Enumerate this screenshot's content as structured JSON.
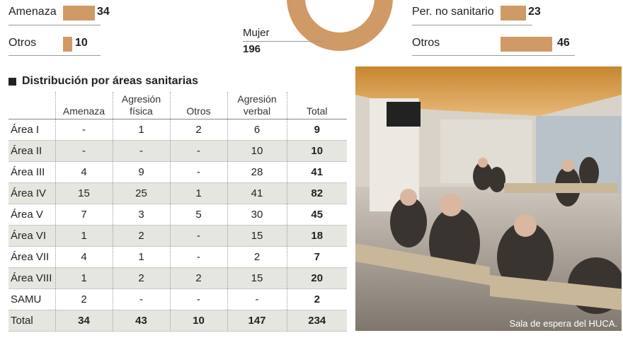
{
  "top_left": {
    "amenaza": {
      "label": "Amenaza",
      "value": "34",
      "fraction": 0.37
    },
    "otros": {
      "label": "Otros",
      "value": "10",
      "fraction": 0.11
    }
  },
  "donut": {
    "label": "Mujer",
    "value": "196"
  },
  "top_right": {
    "per_no_sanitario": {
      "label": "Per. no sanitario",
      "value": "23",
      "fraction": 0.25
    },
    "otros": {
      "label": "Otros",
      "value": "46",
      "fraction": 0.5
    }
  },
  "section_title": "Distribución por áreas sanitarias",
  "table": {
    "headers": [
      "",
      "Amenaza",
      "Agresión física",
      "Otros",
      "Agresión verbal",
      "Total"
    ],
    "rows": [
      [
        "Área I",
        "-",
        "1",
        "2",
        "6",
        "9"
      ],
      [
        "Área II",
        "-",
        "-",
        "-",
        "10",
        "10"
      ],
      [
        "Área III",
        "4",
        "9",
        "-",
        "28",
        "41"
      ],
      [
        "Área IV",
        "15",
        "25",
        "1",
        "41",
        "82"
      ],
      [
        "Área V",
        "7",
        "3",
        "5",
        "30",
        "45"
      ],
      [
        "Área VI",
        "1",
        "2",
        "-",
        "15",
        "18"
      ],
      [
        "Área VII",
        "4",
        "1",
        "-",
        "2",
        "7"
      ],
      [
        "Área VIII",
        "1",
        "2",
        "2",
        "15",
        "20"
      ],
      [
        "SAMU",
        "2",
        "-",
        "-",
        "-",
        "2"
      ]
    ],
    "total_row": [
      "Total",
      "34",
      "43",
      "10",
      "147",
      "234"
    ]
  },
  "photo": {
    "caption": "Sala de espera del HUCA."
  },
  "colors": {
    "accent": "#cf9a66",
    "row_alt": "#e6e6e0"
  }
}
